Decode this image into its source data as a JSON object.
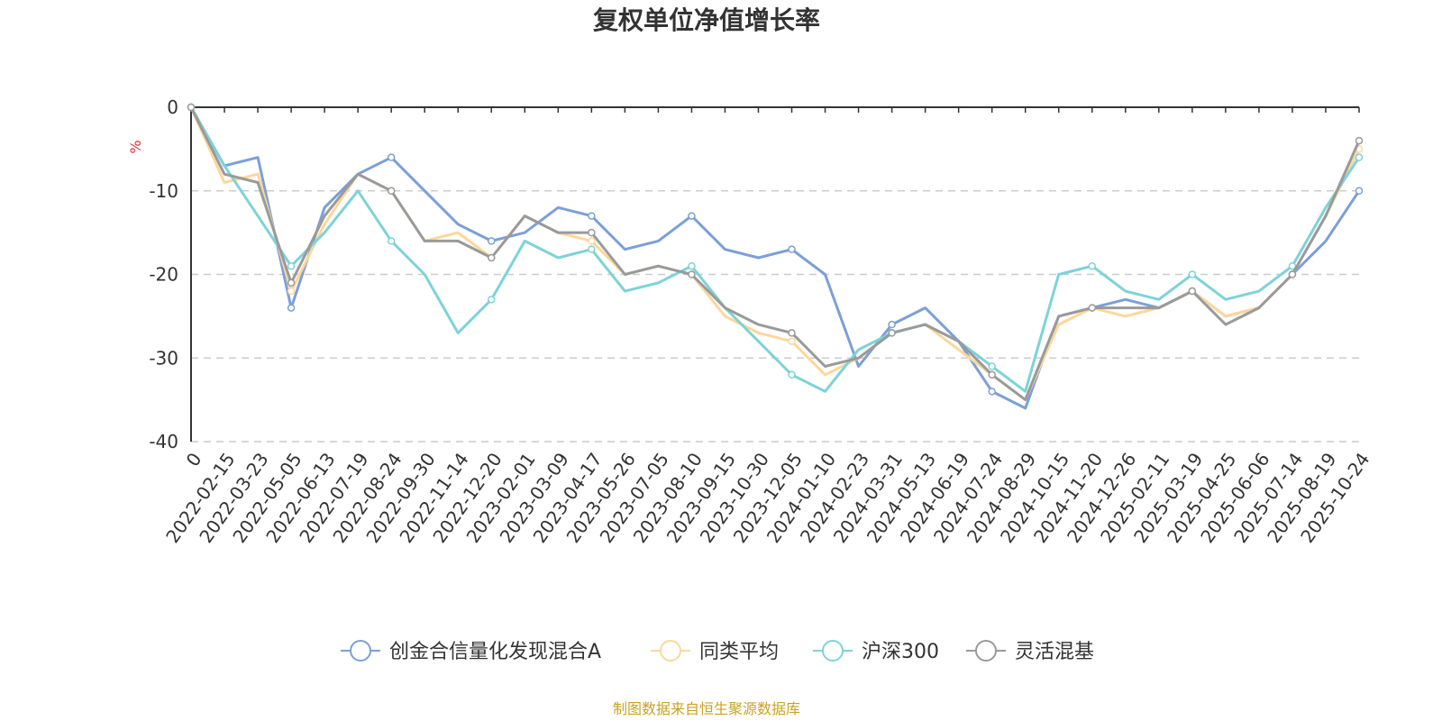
{
  "chart_data": {
    "type": "line",
    "title": "复权单位净值增长率",
    "ylabel": "%",
    "xlabel": "",
    "ylim": [
      -40,
      0
    ],
    "y_ticks": [
      0,
      -10,
      -20,
      -30,
      -40
    ],
    "grid": "horizontal dashed",
    "legend_position": "bottom-center",
    "source": "制图数据来自恒生聚源数据库",
    "categories": [
      "0",
      "2022-02-15",
      "2022-03-23",
      "2022-05-05",
      "2022-06-13",
      "2022-07-19",
      "2022-08-24",
      "2022-09-30",
      "2022-11-14",
      "2022-12-20",
      "2023-02-01",
      "2023-03-09",
      "2023-04-17",
      "2023-05-26",
      "2023-07-05",
      "2023-08-10",
      "2023-09-15",
      "2023-10-30",
      "2023-12-05",
      "2024-01-10",
      "2024-02-23",
      "2024-03-31",
      "2024-05-13",
      "2024-06-19",
      "2024-07-24",
      "2024-08-29",
      "2024-10-15",
      "2024-11-20",
      "2024-12-26",
      "2025-02-11",
      "2025-03-19",
      "2025-04-25",
      "2025-06-06",
      "2025-07-14",
      "2025-08-19",
      "2025-10-24"
    ],
    "series": [
      {
        "name": "创金合信量化发现混合A",
        "color": "#7b9fd8",
        "values": [
          0,
          -7,
          -6,
          -24,
          -12,
          -8,
          -6,
          -10,
          -14,
          -16,
          -15,
          -12,
          -13,
          -17,
          -16,
          -13,
          -17,
          -18,
          -17,
          -20,
          -31,
          -26,
          -24,
          -28,
          -34,
          -36,
          -25,
          -24,
          -23,
          -24,
          -22,
          -25,
          -24,
          -20,
          -16,
          -10
        ]
      },
      {
        "name": "同类平均",
        "color": "#fdd79a",
        "values": [
          0,
          -9,
          -8,
          -22,
          -14,
          -8,
          -10,
          -16,
          -15,
          -18,
          -13,
          -15,
          -16,
          -20,
          -19,
          -20,
          -25,
          -27,
          -28,
          -32,
          -30,
          -27,
          -26,
          -29,
          -32,
          -35,
          -26,
          -24,
          -25,
          -24,
          -22,
          -25,
          -24,
          -20,
          -13,
          -5
        ]
      },
      {
        "name": "沪深300",
        "color": "#7dd3d8",
        "values": [
          0,
          -7,
          -13,
          -19,
          -15,
          -10,
          -16,
          -20,
          -27,
          -23,
          -16,
          -18,
          -17,
          -22,
          -21,
          -19,
          -24,
          -28,
          -32,
          -34,
          -29,
          -27,
          -26,
          -28,
          -31,
          -34,
          -20,
          -19,
          -22,
          -23,
          -20,
          -23,
          -22,
          -19,
          -12,
          -6
        ]
      },
      {
        "name": "灵活混基",
        "color": "#9a9a9a",
        "values": [
          0,
          -8,
          -9,
          -21,
          -13,
          -8,
          -10,
          -16,
          -16,
          -18,
          -13,
          -15,
          -15,
          -20,
          -19,
          -20,
          -24,
          -26,
          -27,
          -31,
          -30,
          -27,
          -26,
          -28,
          -32,
          -35,
          -25,
          -24,
          -24,
          -24,
          -22,
          -26,
          -24,
          -20,
          -13,
          -4
        ]
      }
    ]
  }
}
